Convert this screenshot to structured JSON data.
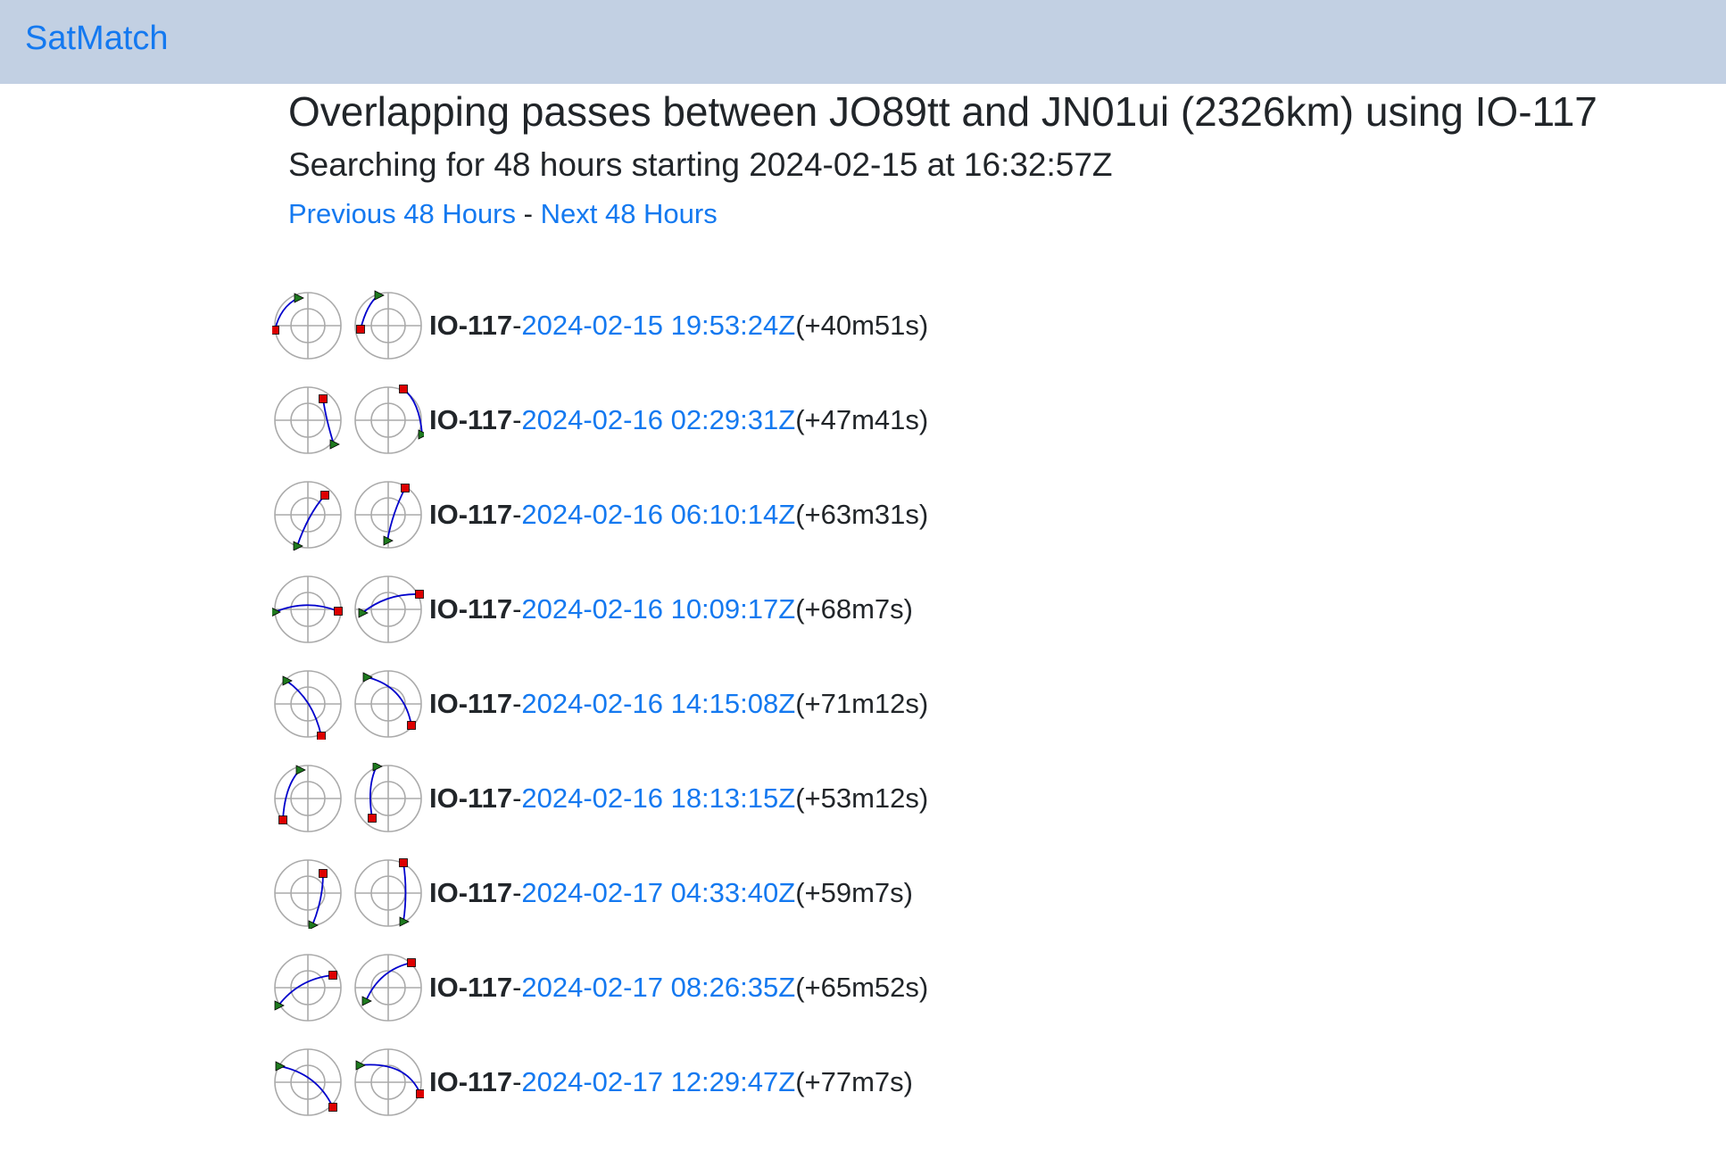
{
  "navbar": {
    "brand": "SatMatch"
  },
  "header": {
    "title": "Overlapping passes between JO89tt and JN01ui (2326km) using IO-117",
    "subtitle": "Searching for 48 hours starting 2024-02-15 at 16:32:57Z",
    "prev_label": "Previous 48 Hours",
    "separator": "-",
    "next_label": "Next 48 Hours"
  },
  "colors": {
    "link": "#1479f0",
    "navbar_bg": "#c2d0e3",
    "track": "#0000cc",
    "aos_marker": "#1f7a1f",
    "los_marker": "#dd0000",
    "grid": "#aaaaaa"
  },
  "passes": [
    {
      "sat": "IO-117",
      "dash": "-",
      "time": "2024-02-15 19:53:24Z",
      "duration": "(+40m51s)",
      "a": {
        "aos": [
          27,
          7
        ],
        "los": [
          1,
          43
        ],
        "c": [
          7,
          17
        ]
      },
      "b": {
        "aos": [
          27,
          4
        ],
        "los": [
          7,
          42
        ],
        "c": [
          14,
          14
        ]
      }
    },
    {
      "sat": "IO-117",
      "dash": "-",
      "time": "2024-02-16 02:29:31Z",
      "duration": "(+47m41s)",
      "a": {
        "aos": [
          67,
          65
        ],
        "los": [
          55,
          14
        ],
        "c": [
          58,
          36
        ]
      },
      "b": {
        "aos": [
          76,
          54
        ],
        "los": [
          55,
          3
        ],
        "c": [
          73,
          17
        ]
      }
    },
    {
      "sat": "IO-117",
      "dash": "-",
      "time": "2024-02-16 06:10:14Z",
      "duration": "(+63m31s)",
      "a": {
        "aos": [
          26,
          73
        ],
        "los": [
          57,
          16
        ],
        "c": [
          38,
          38
        ]
      },
      "b": {
        "aos": [
          37,
          67
        ],
        "los": [
          57,
          8
        ],
        "c": [
          43,
          35
        ]
      }
    },
    {
      "sat": "IO-117",
      "dash": "-",
      "time": "2024-02-16 10:09:17Z",
      "duration": "(+68m7s)",
      "a": {
        "aos": [
          1,
          41
        ],
        "los": [
          72,
          40
        ],
        "c": [
          36,
          26
        ]
      },
      "b": {
        "aos": [
          9,
          42
        ],
        "los": [
          73,
          21
        ],
        "c": [
          36,
          20
        ]
      }
    },
    {
      "sat": "IO-117",
      "dash": "-",
      "time": "2024-02-16 14:15:08Z",
      "duration": "(+71m12s)",
      "a": {
        "aos": [
          14,
          12
        ],
        "los": [
          53,
          74
        ],
        "c": [
          44,
          33
        ]
      },
      "b": {
        "aos": [
          14,
          8
        ],
        "los": [
          64,
          62
        ],
        "c": [
          56,
          18
        ]
      }
    },
    {
      "sat": "IO-117",
      "dash": "-",
      "time": "2024-02-16 18:13:15Z",
      "duration": "(+53m12s)",
      "a": {
        "aos": [
          29,
          6
        ],
        "los": [
          10,
          62
        ],
        "c": [
          12,
          24
        ]
      },
      "b": {
        "aos": [
          25,
          2
        ],
        "los": [
          20,
          60
        ],
        "c": [
          14,
          24
        ]
      }
    },
    {
      "sat": "IO-117",
      "dash": "-",
      "time": "2024-02-17 04:33:40Z",
      "duration": "(+59m7s)",
      "a": {
        "aos": [
          43,
          74
        ],
        "los": [
          55,
          16
        ],
        "c": [
          55,
          45
        ]
      },
      "b": {
        "aos": [
          55,
          70
        ],
        "los": [
          55,
          4
        ],
        "c": [
          60,
          37
        ]
      }
    },
    {
      "sat": "IO-117",
      "dash": "-",
      "time": "2024-02-17 08:26:35Z",
      "duration": "(+65m52s)",
      "a": {
        "aos": [
          5,
          58
        ],
        "los": [
          66,
          24
        ],
        "c": [
          28,
          28
        ]
      },
      "b": {
        "aos": [
          13,
          53
        ],
        "los": [
          64,
          10
        ],
        "c": [
          28,
          18
        ]
      }
    },
    {
      "sat": "IO-117",
      "dash": "-",
      "time": "2024-02-17 12:29:47Z",
      "duration": "(+77m7s)",
      "a": {
        "aos": [
          6,
          20
        ],
        "los": [
          66,
          66
        ],
        "c": [
          48,
          28
        ]
      },
      "b": {
        "aos": [
          6,
          19
        ],
        "los": [
          74,
          51
        ],
        "c": [
          58,
          14
        ]
      }
    }
  ]
}
